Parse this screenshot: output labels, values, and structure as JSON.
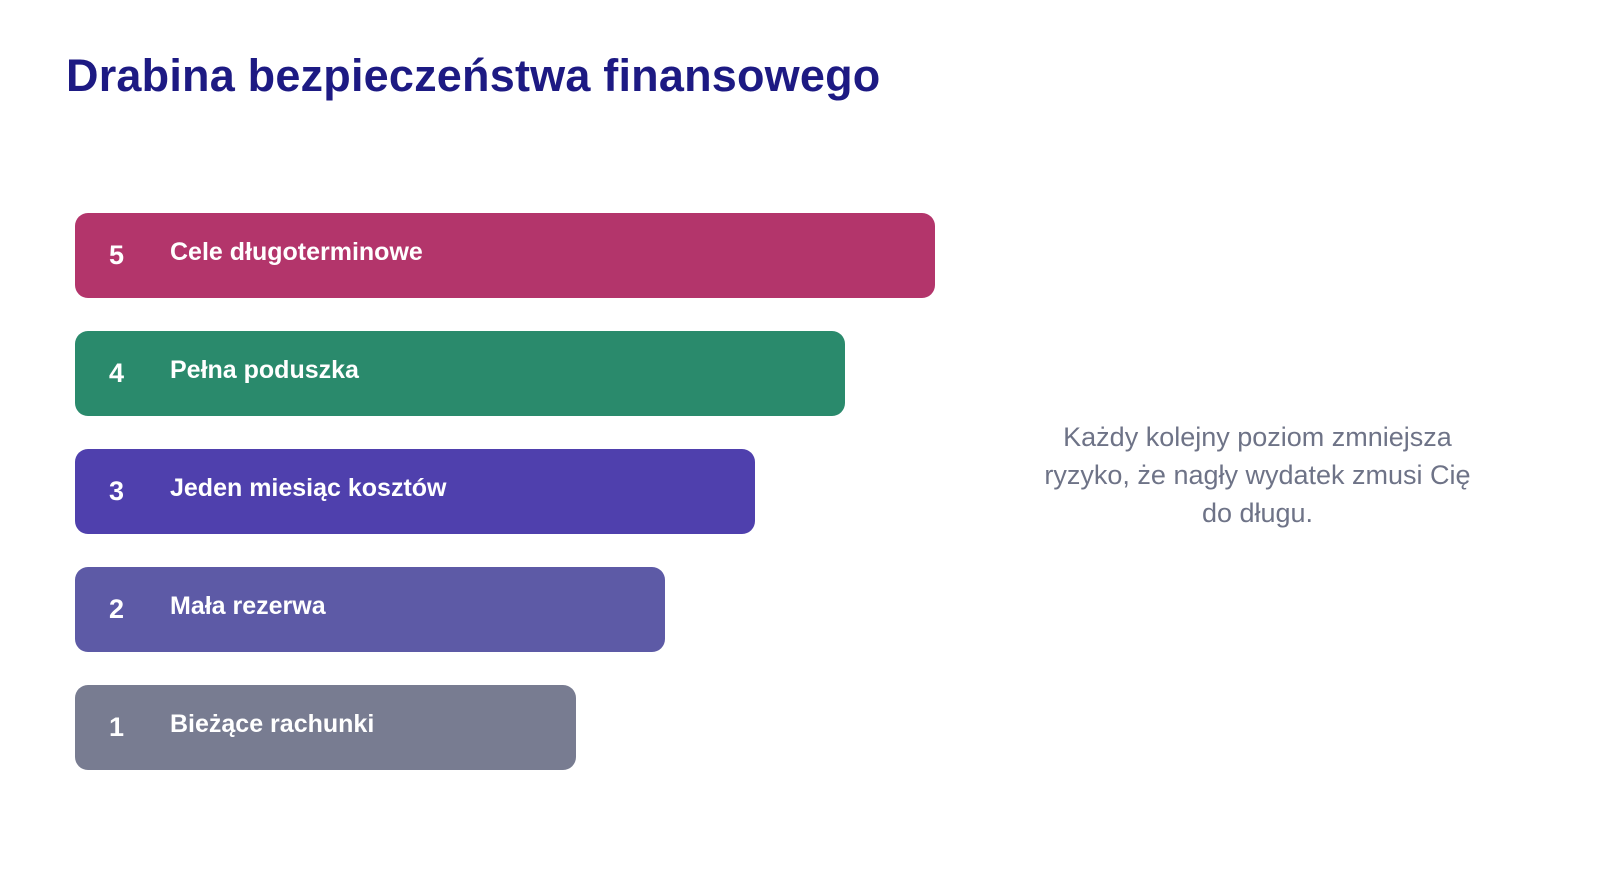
{
  "title": "Drabina bezpieczeństwa finansowego",
  "ladder": {
    "levels": [
      {
        "number": "5",
        "label": "Cele długoterminowe",
        "color": "#b3356b"
      },
      {
        "number": "4",
        "label": "Pełna poduszka",
        "color": "#2a8a6c"
      },
      {
        "number": "3",
        "label": "Jeden miesiąc kosztów",
        "color": "#4f40ad"
      },
      {
        "number": "2",
        "label": "Mała rezerwa",
        "color": "#5d5aa6"
      },
      {
        "number": "1",
        "label": "Bieżące rachunki",
        "color": "#787c91"
      }
    ]
  },
  "note": "Każdy kolejny poziom zmniejsza ryzyko, że nagły wydatek zmusi Cię do długu.",
  "colors": {
    "title": "#1d1a83",
    "note": "#6e7387",
    "background": "#ffffff"
  }
}
